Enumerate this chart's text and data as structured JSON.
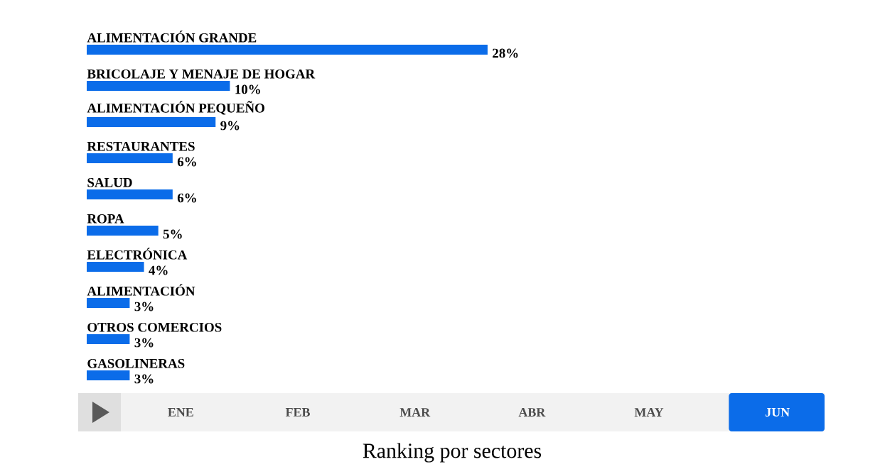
{
  "chart_data": {
    "type": "bar",
    "orientation": "horizontal",
    "title": "Ranking por sectores",
    "categories": [
      "ALIMENTACIÓN GRANDE",
      "BRICOLAJE Y MENAJE DE HOGAR",
      "ALIMENTACIÓN PEQUEÑO",
      "RESTAURANTES",
      "SALUD",
      "ROPA",
      "ELECTRÓNICA",
      "ALIMENTACIÓN",
      "OTROS COMERCIOS",
      "GASOLINERAS"
    ],
    "values": [
      28,
      10,
      9,
      6,
      6,
      5,
      4,
      3,
      3,
      3
    ],
    "value_labels": [
      "28%",
      "10%",
      "9%",
      "6%",
      "6%",
      "5%",
      "4%",
      "3%",
      "3%",
      "3%"
    ],
    "color": "#0b6ce9",
    "annotations": [
      "ENE",
      "FEB",
      "MAR",
      "ABR",
      "MAY",
      "JUN"
    ]
  }
}
